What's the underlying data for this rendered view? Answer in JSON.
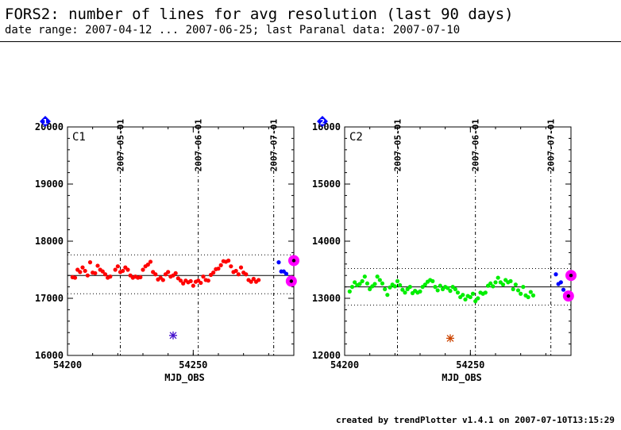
{
  "header": {
    "title": "FORS2: number of lines for avg resolution (last 90 days)",
    "subtitle": "date range: 2007-04-12 ... 2007-06-25; last Paranal data: 2007-07-10"
  },
  "footer": {
    "text": "created by trendPlotter v1.4.1 on 2007-07-10T13:15:29"
  },
  "colors": {
    "c1_points": "#ff0000",
    "c2_points": "#00ee00",
    "recent_points": "#0000ff",
    "highlight": "#ff00ff",
    "marker_badge": "#0000ff"
  },
  "chart_data": [
    {
      "type": "scatter",
      "panel_label": "C1",
      "badge": "1",
      "xlabel": "MJD_OBS",
      "xlim": [
        54200,
        54290
      ],
      "ylim": [
        16000,
        20000
      ],
      "x_ticks": [
        54200,
        54250
      ],
      "y_ticks": [
        16000,
        17000,
        18000,
        19000,
        20000
      ],
      "top_date_ticks": [
        {
          "label": "2007-05-01",
          "x": 54221
        },
        {
          "label": "2007-06-01",
          "x": 54252
        },
        {
          "label": "2007-07-01",
          "x": 54282
        }
      ],
      "reference_line": 17400,
      "threshold_band": [
        17080,
        17760
      ],
      "point_color": "#ff0000",
      "series": [
        {
          "values": [
            [
              54202,
              17370
            ],
            [
              54203,
              17360
            ],
            [
              54204,
              17500
            ],
            [
              54205,
              17460
            ],
            [
              54206,
              17540
            ],
            [
              54207,
              17480
            ],
            [
              54208,
              17400
            ],
            [
              54209,
              17630
            ],
            [
              54210,
              17450
            ],
            [
              54211,
              17440
            ],
            [
              54212,
              17570
            ],
            [
              54213,
              17500
            ],
            [
              54214,
              17470
            ],
            [
              54215,
              17420
            ],
            [
              54216,
              17360
            ],
            [
              54217,
              17380
            ],
            [
              54219,
              17500
            ],
            [
              54220,
              17560
            ],
            [
              54221,
              17460
            ],
            [
              54222,
              17480
            ],
            [
              54223,
              17540
            ],
            [
              54224,
              17500
            ],
            [
              54225,
              17400
            ],
            [
              54226,
              17360
            ],
            [
              54227,
              17380
            ],
            [
              54228,
              17360
            ],
            [
              54229,
              17370
            ],
            [
              54230,
              17500
            ],
            [
              54231,
              17560
            ],
            [
              54232,
              17590
            ],
            [
              54233,
              17640
            ],
            [
              54234,
              17460
            ],
            [
              54235,
              17420
            ],
            [
              54236,
              17330
            ],
            [
              54237,
              17360
            ],
            [
              54238,
              17320
            ],
            [
              54239,
              17420
            ],
            [
              54240,
              17460
            ],
            [
              54241,
              17380
            ],
            [
              54242,
              17400
            ],
            [
              54243,
              17440
            ],
            [
              54244,
              17350
            ],
            [
              54245,
              17310
            ],
            [
              54246,
              17260
            ],
            [
              54247,
              17310
            ],
            [
              54248,
              17280
            ],
            [
              54249,
              17300
            ],
            [
              54250,
              17220
            ],
            [
              54251,
              17290
            ],
            [
              54252,
              17310
            ],
            [
              54253,
              17270
            ],
            [
              54254,
              17380
            ],
            [
              54255,
              17320
            ],
            [
              54256,
              17310
            ],
            [
              54257,
              17410
            ],
            [
              54258,
              17450
            ],
            [
              54259,
              17510
            ],
            [
              54260,
              17520
            ],
            [
              54261,
              17580
            ],
            [
              54262,
              17650
            ],
            [
              54263,
              17640
            ],
            [
              54264,
              17660
            ],
            [
              54265,
              17560
            ],
            [
              54266,
              17460
            ],
            [
              54267,
              17480
            ],
            [
              54268,
              17420
            ],
            [
              54269,
              17540
            ],
            [
              54270,
              17450
            ],
            [
              54271,
              17420
            ],
            [
              54272,
              17320
            ],
            [
              54273,
              17290
            ],
            [
              54274,
              17340
            ],
            [
              54275,
              17290
            ],
            [
              54276,
              17320
            ]
          ]
        },
        {
          "name": "recent",
          "color": "#0000ff",
          "values": [
            [
              54284,
              17630
            ],
            [
              54285,
              17470
            ],
            [
              54286,
              17470
            ],
            [
              54287,
              17430
            ]
          ]
        }
      ],
      "highlighted_points": [
        [
          54290,
          17660
        ],
        [
          54289,
          17300
        ]
      ],
      "outlier": {
        "x": 54242,
        "y": 16350,
        "color": "#4411cc"
      }
    },
    {
      "type": "scatter",
      "panel_label": "C2",
      "badge": "2",
      "xlabel": "MJD_OBS",
      "xlim": [
        54200,
        54290
      ],
      "ylim": [
        12000,
        16000
      ],
      "x_ticks": [
        54200,
        54250
      ],
      "y_ticks": [
        12000,
        13000,
        14000,
        15000,
        16000
      ],
      "top_date_ticks": [
        {
          "label": "2007-05-01",
          "x": 54221
        },
        {
          "label": "2007-06-01",
          "x": 54252
        },
        {
          "label": "2007-07-01",
          "x": 54282
        }
      ],
      "reference_line": 13200,
      "threshold_band": [
        12880,
        13520
      ],
      "point_color": "#00ee00",
      "series": [
        {
          "values": [
            [
              54202,
              13120
            ],
            [
              54203,
              13200
            ],
            [
              54204,
              13280
            ],
            [
              54205,
              13230
            ],
            [
              54206,
              13250
            ],
            [
              54207,
              13300
            ],
            [
              54208,
              13380
            ],
            [
              54209,
              13260
            ],
            [
              54210,
              13160
            ],
            [
              54211,
              13210
            ],
            [
              54212,
              13250
            ],
            [
              54213,
              13380
            ],
            [
              54214,
              13320
            ],
            [
              54215,
              13260
            ],
            [
              54216,
              13160
            ],
            [
              54217,
              13060
            ],
            [
              54218,
              13190
            ],
            [
              54219,
              13240
            ],
            [
              54220,
              13210
            ],
            [
              54221,
              13300
            ],
            [
              54222,
              13230
            ],
            [
              54223,
              13150
            ],
            [
              54224,
              13100
            ],
            [
              54225,
              13160
            ],
            [
              54226,
              13200
            ],
            [
              54227,
              13090
            ],
            [
              54228,
              13130
            ],
            [
              54229,
              13100
            ],
            [
              54230,
              13120
            ],
            [
              54231,
              13200
            ],
            [
              54232,
              13240
            ],
            [
              54233,
              13290
            ],
            [
              54234,
              13320
            ],
            [
              54235,
              13300
            ],
            [
              54236,
              13200
            ],
            [
              54237,
              13140
            ],
            [
              54238,
              13220
            ],
            [
              54239,
              13160
            ],
            [
              54240,
              13200
            ],
            [
              54241,
              13180
            ],
            [
              54242,
              13130
            ],
            [
              54243,
              13200
            ],
            [
              54244,
              13160
            ],
            [
              54245,
              13100
            ],
            [
              54246,
              13020
            ],
            [
              54247,
              13060
            ],
            [
              54248,
              12980
            ],
            [
              54249,
              13040
            ],
            [
              54250,
              13020
            ],
            [
              54251,
              13080
            ],
            [
              54252,
              12950
            ],
            [
              54253,
              13000
            ],
            [
              54254,
              13100
            ],
            [
              54255,
              13080
            ],
            [
              54256,
              13100
            ],
            [
              54257,
              13220
            ],
            [
              54258,
              13260
            ],
            [
              54259,
              13210
            ],
            [
              54260,
              13280
            ],
            [
              54261,
              13360
            ],
            [
              54262,
              13280
            ],
            [
              54263,
              13240
            ],
            [
              54264,
              13320
            ],
            [
              54265,
              13280
            ],
            [
              54266,
              13300
            ],
            [
              54267,
              13160
            ],
            [
              54268,
              13240
            ],
            [
              54269,
              13140
            ],
            [
              54270,
              13080
            ],
            [
              54271,
              13200
            ],
            [
              54272,
              13050
            ],
            [
              54273,
              13020
            ],
            [
              54274,
              13110
            ],
            [
              54275,
              13050
            ]
          ]
        },
        {
          "name": "recent",
          "color": "#0000ff",
          "values": [
            [
              54284,
              13420
            ],
            [
              54285,
              13250
            ],
            [
              54286,
              13280
            ],
            [
              54287,
              13150
            ]
          ]
        }
      ],
      "highlighted_points": [
        [
          54290,
          13400
        ],
        [
          54289,
          13040
        ]
      ],
      "outlier": {
        "x": 54242,
        "y": 12300,
        "color": "#cc4400"
      }
    }
  ]
}
